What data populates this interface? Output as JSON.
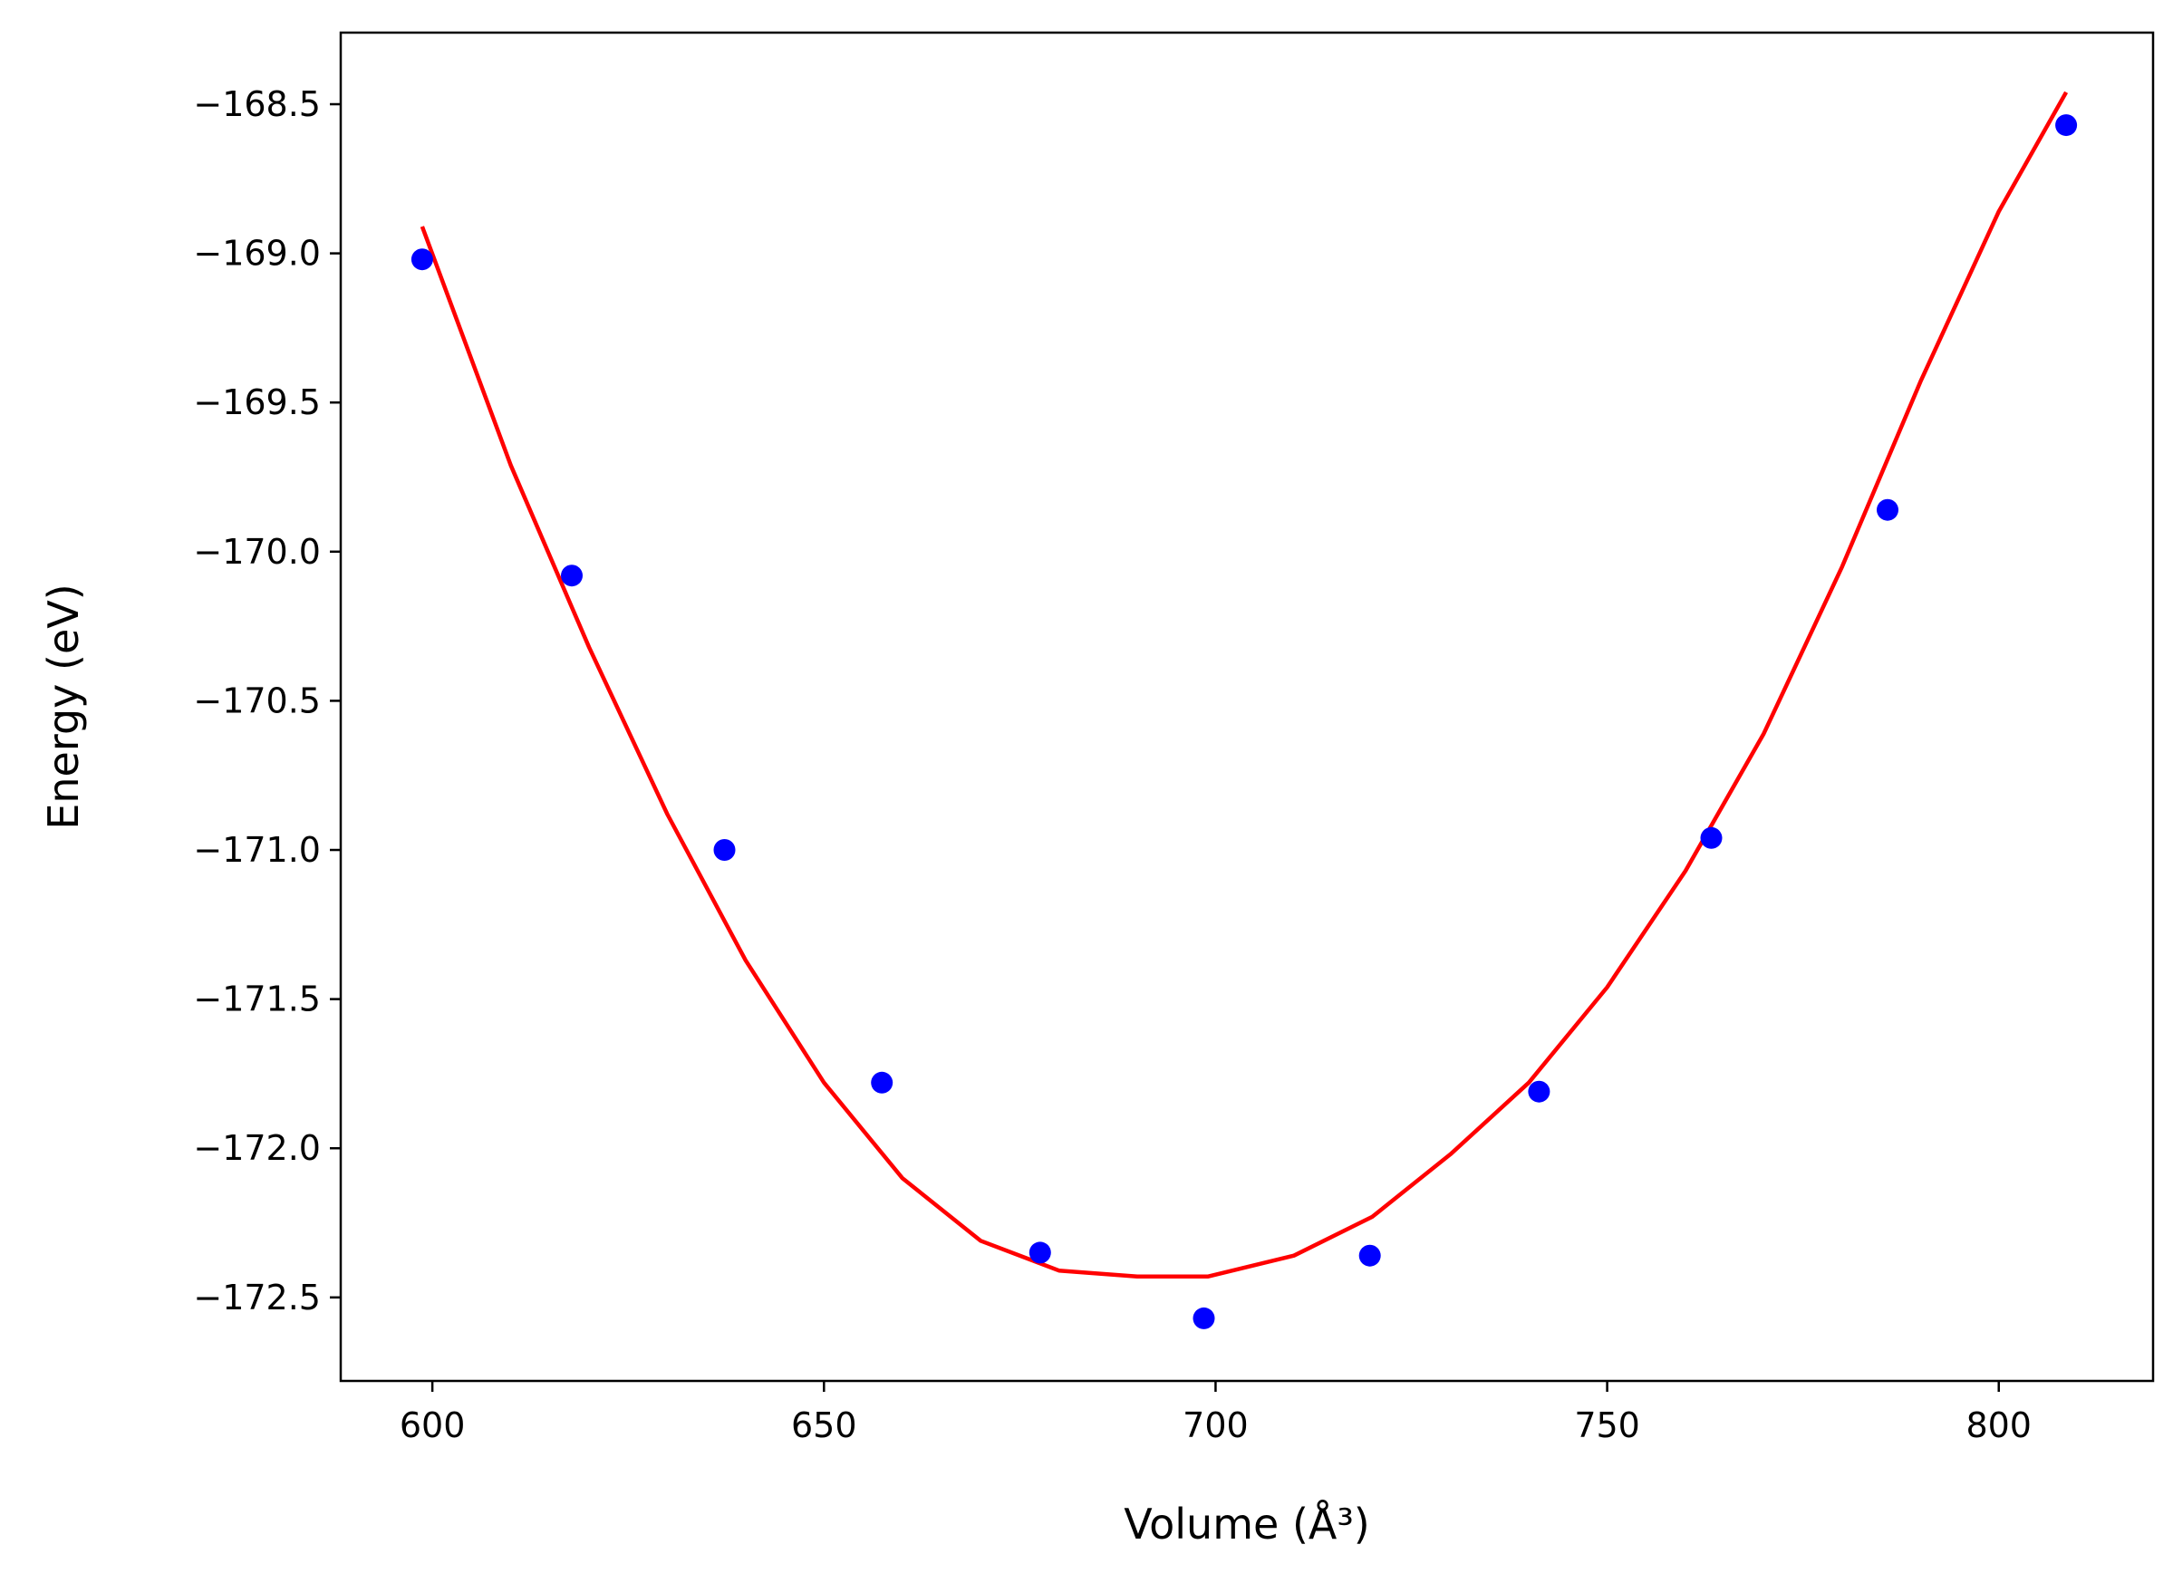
{
  "chart_data": {
    "type": "scatter",
    "xlabel": "Volume (Å³)",
    "ylabel": "Energy (eV)",
    "xlim": [
      588.3,
      819.7
    ],
    "ylim": [
      -172.78,
      -168.26
    ],
    "x_ticks": [
      600,
      650,
      700,
      750,
      800
    ],
    "y_ticks": [
      -168.5,
      -169.0,
      -169.5,
      -170.0,
      -170.5,
      -171.0,
      -171.5,
      -172.0,
      -172.5
    ],
    "x_tick_labels": [
      "600",
      "650",
      "700",
      "750",
      "800"
    ],
    "y_tick_labels": [
      "−168.5",
      "−169.0",
      "−169.5",
      "−170.0",
      "−170.5",
      "−171.0",
      "−171.5",
      "−172.0",
      "−172.5"
    ],
    "grid": false,
    "series": [
      {
        "kind": "points",
        "color": "#0000ff",
        "points": [
          {
            "x": 598.7,
            "y": -169.02
          },
          {
            "x": 617.8,
            "y": -170.08
          },
          {
            "x": 637.3,
            "y": -171.0
          },
          {
            "x": 657.4,
            "y": -171.78
          },
          {
            "x": 677.6,
            "y": -172.35
          },
          {
            "x": 698.5,
            "y": -172.57
          },
          {
            "x": 719.7,
            "y": -172.36
          },
          {
            "x": 741.3,
            "y": -171.81
          },
          {
            "x": 763.3,
            "y": -170.96
          },
          {
            "x": 785.8,
            "y": -169.86
          },
          {
            "x": 808.6,
            "y": -168.57
          }
        ]
      },
      {
        "kind": "fit-curve",
        "color": "#ff0000",
        "points": [
          {
            "x": 598.7,
            "y": -168.91
          },
          {
            "x": 610,
            "y": -169.71
          },
          {
            "x": 620,
            "y": -170.32
          },
          {
            "x": 630,
            "y": -170.88
          },
          {
            "x": 640,
            "y": -171.37
          },
          {
            "x": 650,
            "y": -171.78
          },
          {
            "x": 660,
            "y": -172.1
          },
          {
            "x": 670,
            "y": -172.31
          },
          {
            "x": 680,
            "y": -172.41
          },
          {
            "x": 690,
            "y": -172.43
          },
          {
            "x": 699,
            "y": -172.43
          },
          {
            "x": 710,
            "y": -172.36
          },
          {
            "x": 720,
            "y": -172.23
          },
          {
            "x": 730,
            "y": -172.02
          },
          {
            "x": 740,
            "y": -171.78
          },
          {
            "x": 750,
            "y": -171.46
          },
          {
            "x": 760,
            "y": -171.07
          },
          {
            "x": 770,
            "y": -170.61
          },
          {
            "x": 780,
            "y": -170.05
          },
          {
            "x": 790,
            "y": -169.43
          },
          {
            "x": 800,
            "y": -168.86
          },
          {
            "x": 808.6,
            "y": -168.46
          }
        ]
      }
    ]
  }
}
